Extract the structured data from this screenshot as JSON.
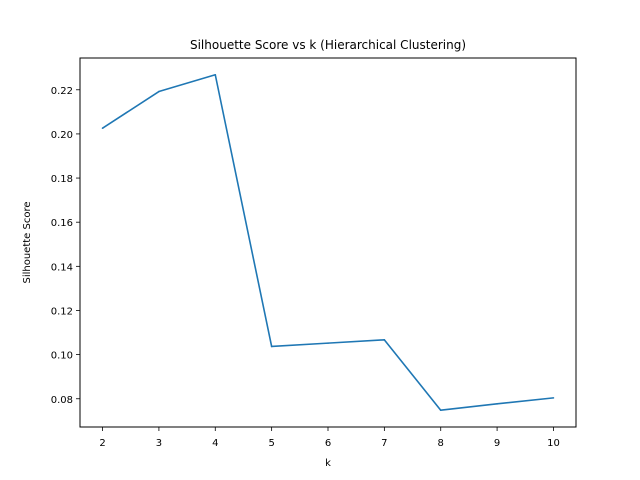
{
  "chart_data": {
    "type": "line",
    "title": "Silhouette Score vs k (Hierarchical Clustering)",
    "xlabel": "k",
    "ylabel": "Silhouette Score",
    "x": [
      2,
      3,
      4,
      5,
      6,
      7,
      8,
      9,
      10
    ],
    "series": [
      {
        "values": [
          0.2026,
          0.2192,
          0.2268,
          0.1037,
          0.1052,
          0.1067,
          0.0748,
          0.0777,
          0.0804
        ],
        "color": "#1f77b4"
      }
    ],
    "xticks": [
      "2",
      "3",
      "4",
      "5",
      "6",
      "7",
      "8",
      "9",
      "10"
    ],
    "yticks": [
      "0.08",
      "0.10",
      "0.12",
      "0.14",
      "0.16",
      "0.18",
      "0.20",
      "0.22"
    ],
    "ytick_values": [
      0.08,
      0.1,
      0.12,
      0.14,
      0.16,
      0.18,
      0.2,
      0.22
    ],
    "xlim": [
      1.6,
      10.4
    ],
    "ylim": [
      0.0672,
      0.2344
    ],
    "grid": false,
    "legend": "none"
  }
}
